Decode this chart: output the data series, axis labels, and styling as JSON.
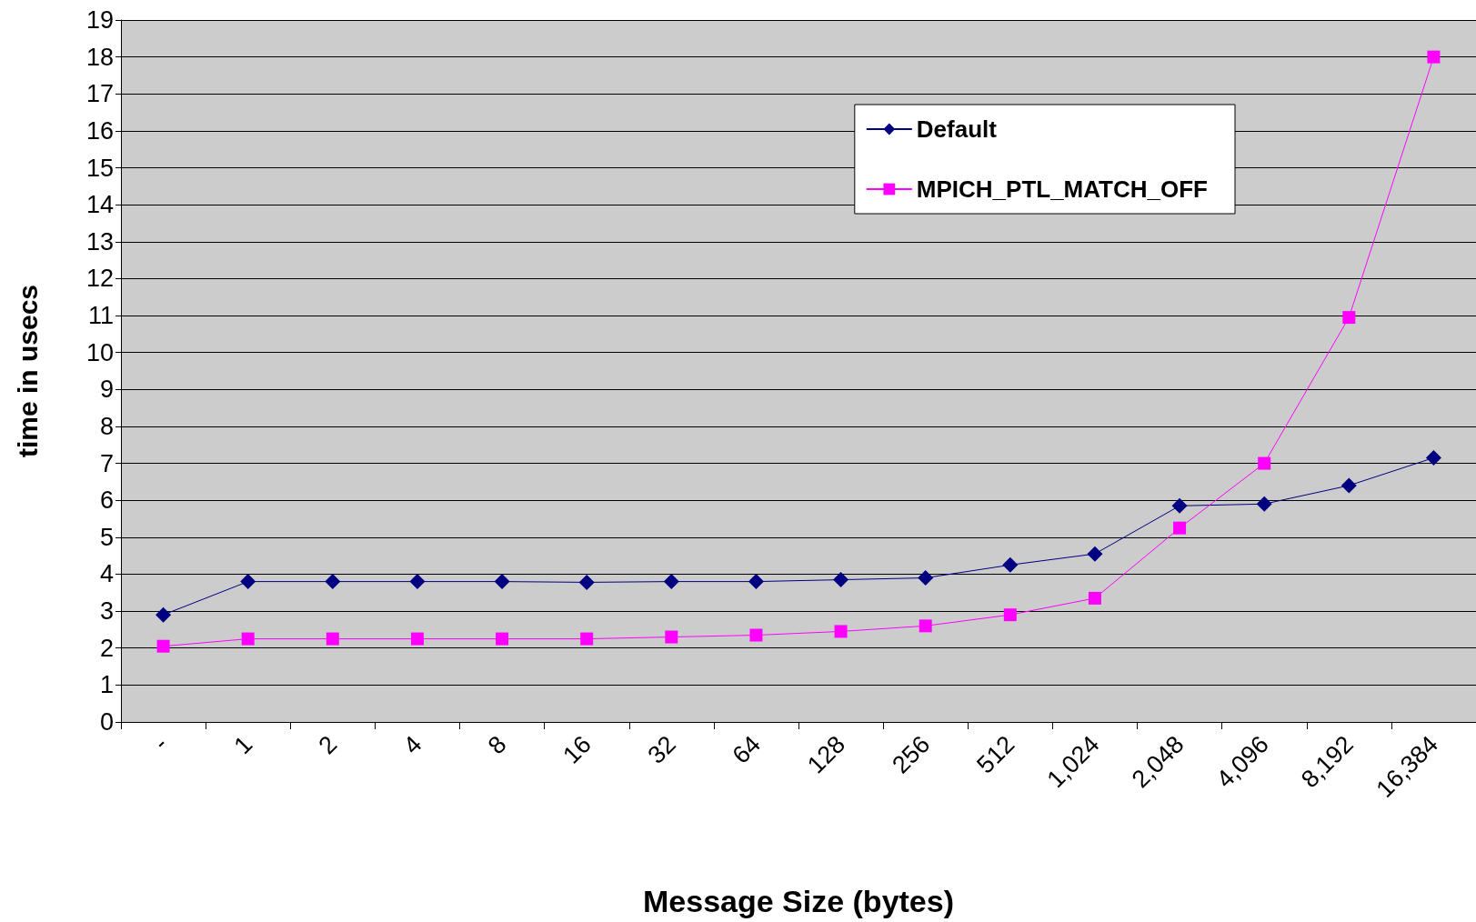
{
  "chart_data": {
    "type": "line",
    "xlabel": "Message Size (bytes)",
    "ylabel": "time in usecs",
    "categories": [
      "-",
      "1",
      "2",
      "4",
      "8",
      "16",
      "32",
      "64",
      "128",
      "256",
      "512",
      "1,024",
      "2,048",
      "4,096",
      "8,192",
      "16,384"
    ],
    "series": [
      {
        "name": "Default",
        "color": "#000080",
        "marker": "diamond",
        "values": [
          2.9,
          3.8,
          3.8,
          3.8,
          3.8,
          3.78,
          3.8,
          3.8,
          3.85,
          3.9,
          4.25,
          4.55,
          5.85,
          5.9,
          6.4,
          7.15
        ]
      },
      {
        "name": "MPICH_PTL_MATCH_OFF",
        "color": "#ff00ff",
        "marker": "square",
        "values": [
          2.05,
          2.25,
          2.25,
          2.25,
          2.25,
          2.25,
          2.3,
          2.35,
          2.45,
          2.6,
          2.9,
          3.35,
          5.25,
          7.0,
          10.95,
          18.0
        ]
      }
    ],
    "ylim": [
      0,
      19
    ],
    "yticks": [
      0,
      1,
      2,
      3,
      4,
      5,
      6,
      7,
      8,
      9,
      10,
      11,
      12,
      13,
      14,
      15,
      16,
      17,
      18,
      19
    ],
    "grid": "y",
    "legend": "top right",
    "line_style": "solid"
  }
}
